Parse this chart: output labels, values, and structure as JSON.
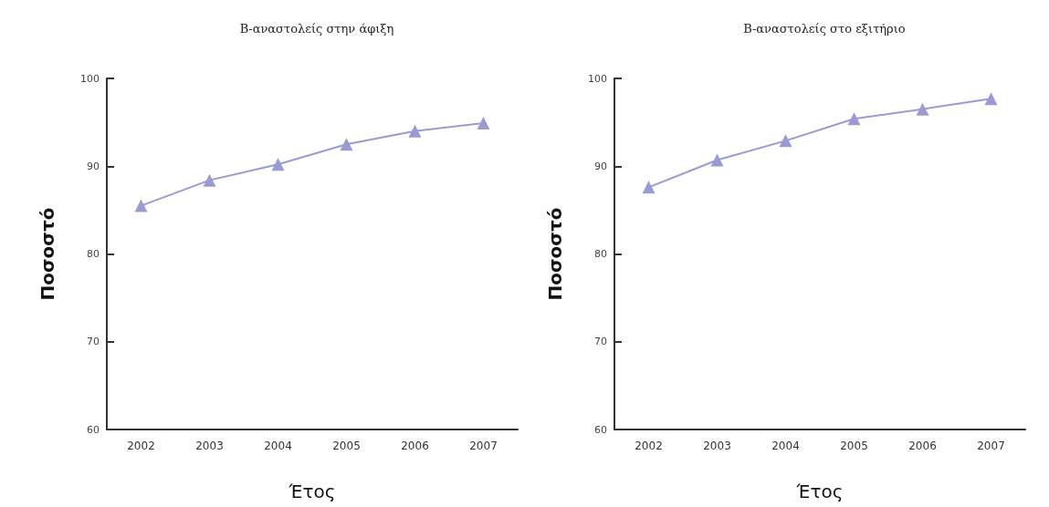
{
  "chart_data": [
    {
      "type": "line",
      "title": "Β-αναστολείς στην άφιξη",
      "xlabel": "Έτος",
      "ylabel": "Ποσοστό",
      "categories": [
        "2002",
        "2003",
        "2004",
        "2005",
        "2006",
        "2007"
      ],
      "series": [
        {
          "color": "#9a9ad4",
          "values": [
            85.5,
            88.4,
            90.2,
            92.5,
            94.0,
            94.9
          ]
        }
      ],
      "ylim": [
        60,
        100
      ],
      "yticks": [
        60,
        70,
        80,
        90,
        100
      ],
      "grid": false,
      "marker": "triangle",
      "line_style": "solid"
    },
    {
      "type": "line",
      "title": "Β-αναστολείς στο εξιτήριο",
      "xlabel": "Έτος",
      "ylabel": "Ποσοστό",
      "categories": [
        "2002",
        "2003",
        "2004",
        "2005",
        "2006",
        "2007"
      ],
      "series": [
        {
          "color": "#9a9ad4",
          "values": [
            87.6,
            90.7,
            92.9,
            95.4,
            96.5,
            97.7
          ]
        }
      ],
      "ylim": [
        60,
        100
      ],
      "yticks": [
        60,
        70,
        80,
        90,
        100
      ],
      "grid": false,
      "marker": "triangle",
      "line_style": "solid"
    }
  ]
}
